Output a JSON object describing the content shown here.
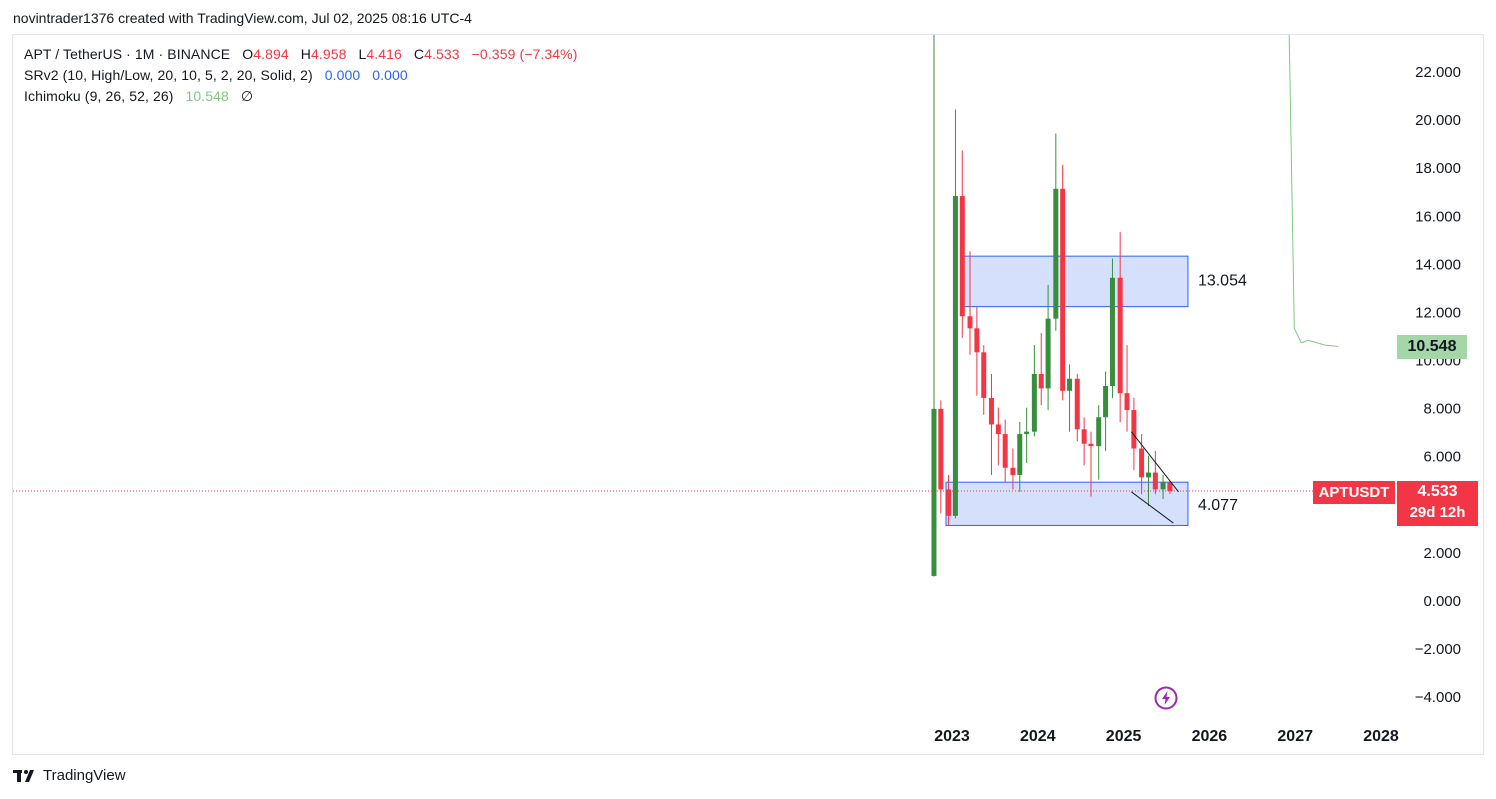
{
  "header": {
    "attribution": "novintrader1376 created with TradingView.com, Jul 02, 2025 08:16 UTC-4"
  },
  "legend": {
    "symbol_line": "APT / TetherUS · 1M · BINANCE",
    "o_label": "O",
    "o_value": "4.894",
    "h_label": "H",
    "h_value": "4.958",
    "l_label": "L",
    "l_value": "4.416",
    "c_label": "C",
    "c_value": "4.533",
    "change": "−0.359 (−7.34%)",
    "srv2_label": "SRv2 (10, High/Low, 20, 10, 5, 2, 20, Solid, 2)",
    "srv2_v1": "0.000",
    "srv2_v2": "0.000",
    "ichimoku_label": "Ichimoku (9, 26, 52, 26)",
    "ichimoku_value": "10.548",
    "ichimoku_na": "∅"
  },
  "badges": {
    "symbol": "APTUSDT",
    "price": "4.533",
    "countdown": "29d 12h",
    "ichimoku": "10.548"
  },
  "footer": {
    "brand": "TradingView"
  },
  "colors": {
    "up": "#388e3c",
    "down": "#f23645",
    "zone_fill": "#d3defc",
    "zone_stroke": "#2962ff",
    "ichimoku": "#81c784",
    "price_line": "#f23645"
  },
  "chart_data": {
    "type": "candlestick",
    "y_axis": {
      "range": [
        -4.9,
        23.3
      ],
      "ticks": [
        "22.000",
        "20.000",
        "18.000",
        "16.000",
        "14.000",
        "12.000",
        "10.000",
        "8.000",
        "6.000",
        "4.000",
        "2.000",
        "0.000",
        "−2.000",
        "−4.000"
      ],
      "tick_values": [
        22,
        20,
        18,
        16,
        14,
        12,
        10,
        8,
        6,
        4,
        2,
        0,
        -2,
        -4
      ]
    },
    "x_axis": {
      "ticks": [
        "2023",
        "2024",
        "2025",
        "2026",
        "2027",
        "2028"
      ],
      "tick_values": [
        2023,
        2024,
        2025,
        2026,
        2027,
        2028
      ],
      "range": [
        2022.0,
        2028.2
      ]
    },
    "candles": [
      {
        "t": 2022.79,
        "o": 1.0,
        "h": 23.5,
        "l": 0.97,
        "c": 7.95
      },
      {
        "t": 2022.87,
        "o": 7.95,
        "h": 8.3,
        "l": 3.6,
        "c": 4.6
      },
      {
        "t": 2022.96,
        "o": 4.6,
        "h": 5.2,
        "l": 3.1,
        "c": 3.5
      },
      {
        "t": 2023.04,
        "o": 3.5,
        "h": 20.4,
        "l": 3.4,
        "c": 16.8
      },
      {
        "t": 2023.12,
        "o": 16.8,
        "h": 18.7,
        "l": 10.9,
        "c": 11.8
      },
      {
        "t": 2023.21,
        "o": 11.8,
        "h": 14.5,
        "l": 10.2,
        "c": 11.3
      },
      {
        "t": 2023.29,
        "o": 11.3,
        "h": 12.2,
        "l": 8.5,
        "c": 10.3
      },
      {
        "t": 2023.37,
        "o": 10.3,
        "h": 10.6,
        "l": 7.7,
        "c": 8.4
      },
      {
        "t": 2023.46,
        "o": 8.4,
        "h": 9.4,
        "l": 5.2,
        "c": 7.3
      },
      {
        "t": 2023.54,
        "o": 7.3,
        "h": 8.0,
        "l": 5.6,
        "c": 6.9
      },
      {
        "t": 2023.62,
        "o": 6.9,
        "h": 7.5,
        "l": 4.9,
        "c": 5.5
      },
      {
        "t": 2023.71,
        "o": 5.5,
        "h": 6.3,
        "l": 4.6,
        "c": 5.2
      },
      {
        "t": 2023.79,
        "o": 5.2,
        "h": 7.4,
        "l": 4.5,
        "c": 6.9
      },
      {
        "t": 2023.87,
        "o": 6.9,
        "h": 8.0,
        "l": 5.7,
        "c": 7.0
      },
      {
        "t": 2023.96,
        "o": 7.0,
        "h": 10.6,
        "l": 6.8,
        "c": 9.4
      },
      {
        "t": 2024.04,
        "o": 9.4,
        "h": 11.1,
        "l": 8.1,
        "c": 8.8
      },
      {
        "t": 2024.12,
        "o": 8.8,
        "h": 13.1,
        "l": 7.9,
        "c": 11.7
      },
      {
        "t": 2024.21,
        "o": 11.7,
        "h": 19.4,
        "l": 11.2,
        "c": 17.1
      },
      {
        "t": 2024.29,
        "o": 17.1,
        "h": 18.1,
        "l": 8.3,
        "c": 8.7
      },
      {
        "t": 2024.37,
        "o": 8.7,
        "h": 9.8,
        "l": 7.0,
        "c": 9.2
      },
      {
        "t": 2024.46,
        "o": 9.2,
        "h": 9.4,
        "l": 6.6,
        "c": 7.1
      },
      {
        "t": 2024.54,
        "o": 7.1,
        "h": 7.6,
        "l": 5.6,
        "c": 6.5
      },
      {
        "t": 2024.62,
        "o": 6.5,
        "h": 7.0,
        "l": 4.3,
        "c": 6.4
      },
      {
        "t": 2024.71,
        "o": 6.4,
        "h": 8.1,
        "l": 5.0,
        "c": 7.6
      },
      {
        "t": 2024.79,
        "o": 7.6,
        "h": 9.5,
        "l": 6.2,
        "c": 8.9
      },
      {
        "t": 2024.87,
        "o": 8.9,
        "h": 14.2,
        "l": 8.4,
        "c": 13.4
      },
      {
        "t": 2024.96,
        "o": 13.4,
        "h": 15.3,
        "l": 7.4,
        "c": 8.6
      },
      {
        "t": 2025.04,
        "o": 8.6,
        "h": 10.6,
        "l": 7.0,
        "c": 7.9
      },
      {
        "t": 2025.12,
        "o": 7.9,
        "h": 8.4,
        "l": 5.4,
        "c": 6.3
      },
      {
        "t": 2025.21,
        "o": 6.3,
        "h": 6.9,
        "l": 4.4,
        "c": 5.1
      },
      {
        "t": 2025.29,
        "o": 5.1,
        "h": 6.0,
        "l": 3.9,
        "c": 5.3
      },
      {
        "t": 2025.37,
        "o": 5.3,
        "h": 6.2,
        "l": 4.4,
        "c": 4.6
      },
      {
        "t": 2025.46,
        "o": 4.6,
        "h": 5.2,
        "l": 4.2,
        "c": 4.9
      },
      {
        "t": 2025.54,
        "o": 4.894,
        "h": 4.958,
        "l": 4.416,
        "c": 4.533
      }
    ],
    "zones": [
      {
        "x0": 2023.1,
        "x1": 2025.75,
        "y_low": 12.2,
        "y_high": 14.3,
        "label": "13.054"
      },
      {
        "x0": 2022.93,
        "x1": 2025.75,
        "y_low": 3.1,
        "y_high": 4.9,
        "label": "4.077"
      }
    ],
    "trendlines": [
      {
        "x0": 2025.09,
        "y0": 7.0,
        "x1": 2025.64,
        "y1": 4.5
      },
      {
        "x0": 2025.09,
        "y0": 4.5,
        "x1": 2025.58,
        "y1": 3.2
      }
    ],
    "ichimoku_line": [
      {
        "t": 2026.93,
        "v": 23.5
      },
      {
        "t": 2026.99,
        "v": 11.3
      },
      {
        "t": 2027.07,
        "v": 10.7
      },
      {
        "t": 2027.15,
        "v": 10.8
      },
      {
        "t": 2027.35,
        "v": 10.6
      },
      {
        "t": 2027.5,
        "v": 10.548
      }
    ],
    "last_price": 4.533
  }
}
